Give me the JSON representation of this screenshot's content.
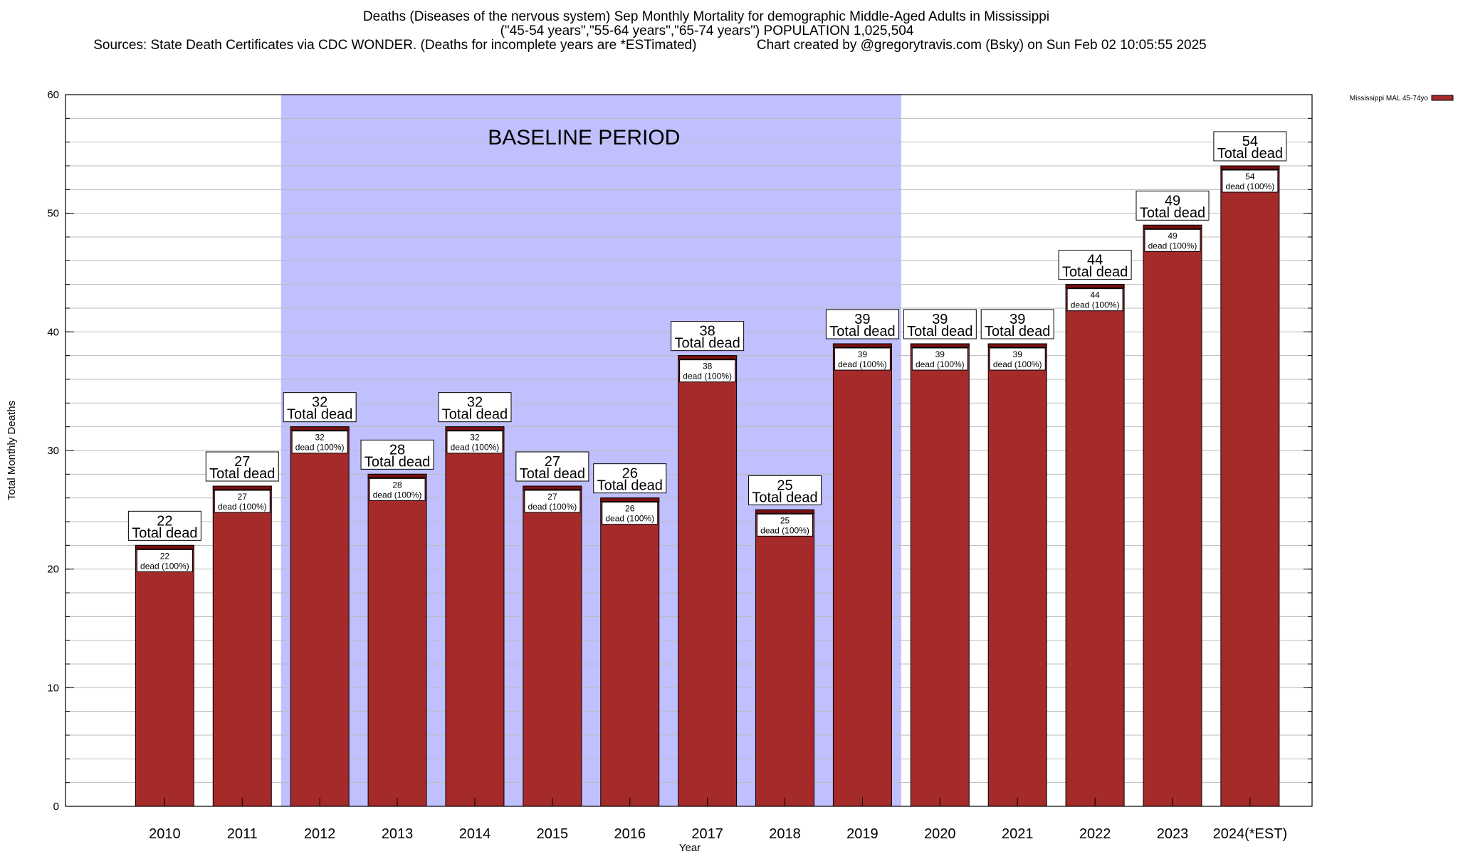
{
  "title": {
    "line1": "Deaths (Diseases of the nervous system) Sep Monthly Mortality for demographic Middle-Aged Adults in Mississippi",
    "line2": "(\"45-54 years\",\"55-64 years\",\"65-74 years\") POPULATION 1,025,504",
    "line3": "Sources: State Death Certificates via CDC WONDER. (Deaths for incomplete years are *ESTimated)                Chart created by @gregorytravis.com (Bsky) on Sun Feb 02 10:05:55 2025"
  },
  "colors": {
    "bar": "#a52a2a",
    "bar_top": "#7a1010",
    "baseline_band": "#c0c0ff",
    "grid": "#bbbbbb"
  },
  "chart_data": {
    "type": "bar",
    "xlabel": "Year",
    "ylabel": "Total Monthly Deaths",
    "ylim": [
      0,
      60
    ],
    "yticks": [
      0,
      10,
      20,
      30,
      40,
      50,
      60
    ],
    "minor_tick_step": 2,
    "grid": true,
    "legend": {
      "label": "Mississippi MAL 45-74yo",
      "placement": "top-right"
    },
    "baseline_period": {
      "label": "BASELINE PERIOD",
      "from": "2012",
      "to": "2019"
    },
    "categories": [
      "2010",
      "2011",
      "2012",
      "2013",
      "2014",
      "2015",
      "2016",
      "2017",
      "2018",
      "2019",
      "2020",
      "2021",
      "2022",
      "2023",
      "2024(*EST)"
    ],
    "series": [
      {
        "name": "Mississippi MAL 45-74yo",
        "values": [
          22,
          27,
          32,
          28,
          32,
          27,
          26,
          38,
          25,
          39,
          39,
          39,
          44,
          49,
          54
        ]
      }
    ],
    "total_label": "Total dead",
    "inner_label_suffix": "dead (100%)"
  }
}
